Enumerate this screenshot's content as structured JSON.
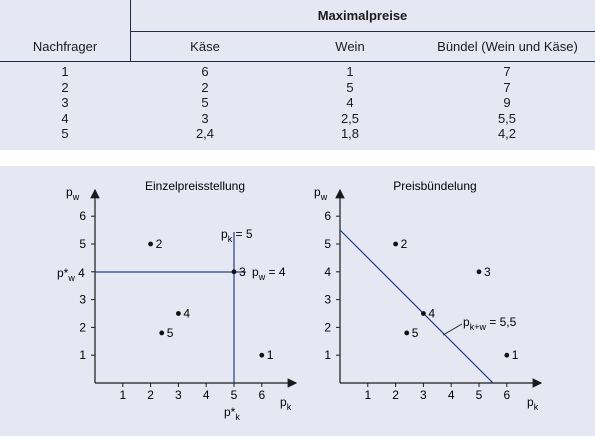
{
  "table": {
    "group_header": "Maximalpreise",
    "columns": [
      "Nachfrager",
      "Käse",
      "Wein",
      "Bündel (Wein und Käse)"
    ],
    "rows": [
      [
        "1",
        "6",
        "1",
        "7"
      ],
      [
        "2",
        "2",
        "5",
        "7"
      ],
      [
        "3",
        "5",
        "4",
        "9"
      ],
      [
        "4",
        "3",
        "2,5",
        "5,5"
      ],
      [
        "5",
        "2,4",
        "1,8",
        "4,2"
      ]
    ]
  },
  "left_plot": {
    "title": "Einzelpreisstellung",
    "y_label_main": "p",
    "y_label_sub": "w",
    "x_label_main": "p",
    "x_label_sub": "k",
    "x_ticks": [
      "1",
      "2",
      "3",
      "4",
      "5",
      "6"
    ],
    "y_ticks": [
      "1",
      "2",
      "3",
      "4",
      "5",
      "6"
    ],
    "points": [
      {
        "label": "1",
        "x": 6,
        "y": 1
      },
      {
        "label": "2",
        "x": 2,
        "y": 5
      },
      {
        "label": "3",
        "x": 5,
        "y": 4
      },
      {
        "label": "4",
        "x": 3,
        "y": 2.5
      },
      {
        "label": "5",
        "x": 2.4,
        "y": 1.8
      }
    ],
    "vline_label_main": "p",
    "vline_label_sub": "k",
    "vline_label_tail": " = 5",
    "hline_label_main": "p",
    "hline_label_sub": "w",
    "hline_label_tail": " = 4",
    "ystar_main": "p*",
    "ystar_sub": "w",
    "ystar_tail": " 4",
    "xstar_main": "p*",
    "xstar_sub": "k",
    "xstar_head": "5"
  },
  "right_plot": {
    "title": "Preisbündelung",
    "y_label_main": "p",
    "y_label_sub": "w",
    "x_label_main": "p",
    "x_label_sub": "k",
    "x_ticks": [
      "1",
      "2",
      "3",
      "4",
      "5",
      "6"
    ],
    "y_ticks": [
      "1",
      "2",
      "3",
      "4",
      "5",
      "6"
    ],
    "points": [
      {
        "label": "1",
        "x": 6,
        "y": 1
      },
      {
        "label": "2",
        "x": 2,
        "y": 5
      },
      {
        "label": "3",
        "x": 5,
        "y": 4
      },
      {
        "label": "4",
        "x": 3,
        "y": 2.5
      },
      {
        "label": "5",
        "x": 2.4,
        "y": 1.8
      }
    ],
    "line_label_main": "p",
    "line_label_sub": "k+w",
    "line_label_tail": " = 5,5"
  },
  "colors": {
    "line": "#1f3f8f",
    "background": "#e5e8f2",
    "rule": "#1f2a44"
  }
}
